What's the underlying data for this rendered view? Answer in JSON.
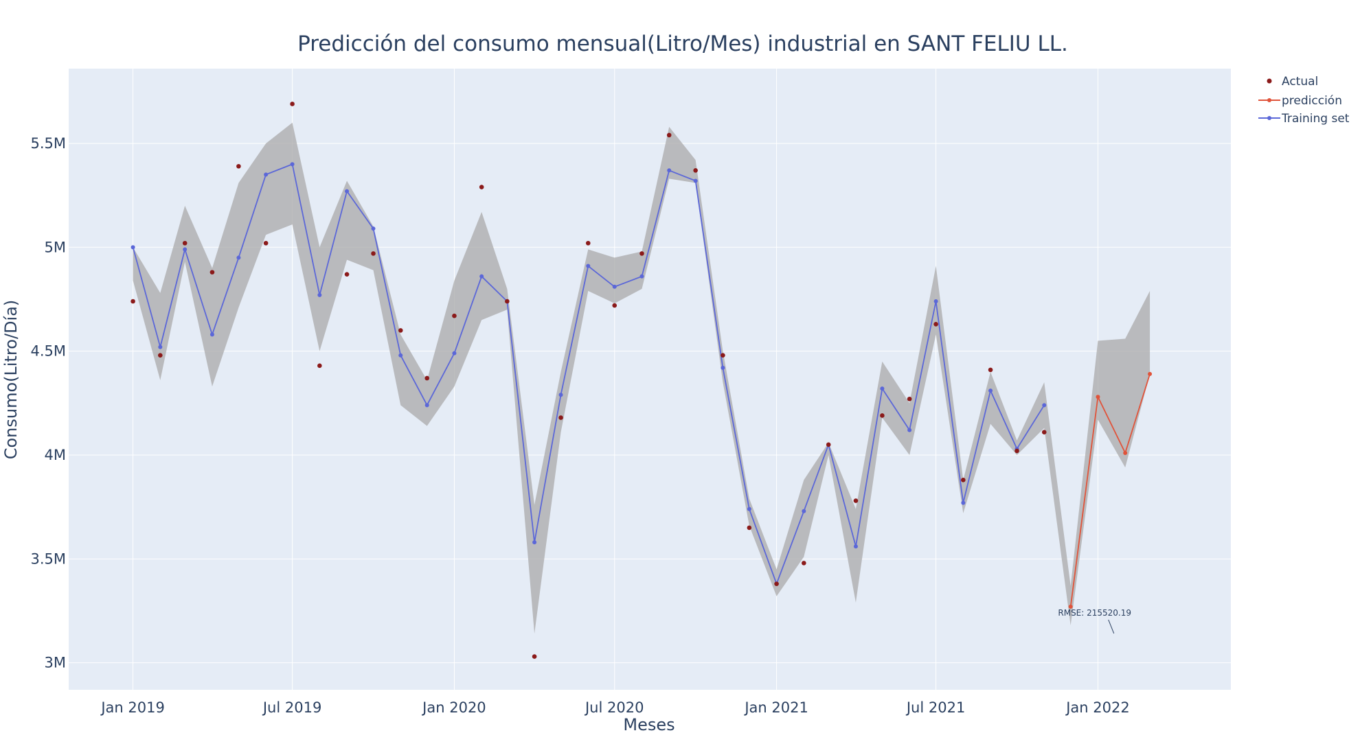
{
  "chart_data": {
    "type": "line",
    "title": "Predicción del consumo mensual(Litro/Mes) industrial en SANT FELIU LL.",
    "xlabel": "Meses",
    "ylabel": "Consumo(Litro/Día)",
    "x_tick_labels": [
      "Jan 2019",
      "Jul 2019",
      "Jan 2020",
      "Jul 2020",
      "Jan 2021",
      "Jul 2021",
      "Jan 2022"
    ],
    "y_ticks": [
      3000000,
      3500000,
      4000000,
      4500000,
      5000000,
      5500000
    ],
    "y_tick_labels": [
      "3M",
      "3.5M",
      "4M",
      "4.5M",
      "5M",
      "5.5M"
    ],
    "ylim": [
      2870000,
      5860000
    ],
    "xlim": [
      "2018-10-20",
      "2022-06-01"
    ],
    "grid": true,
    "legend_position": "top-right",
    "colors": {
      "plot_bg": "#e5ecf6",
      "grid": "#ffffff",
      "band": "#a9a9a9",
      "actual": "#8b1a1a",
      "prediccion": "#e0533a",
      "training": "#5b67d8",
      "text": "#2a3f5f"
    },
    "series": [
      {
        "name": "Actual",
        "mode": "markers",
        "x": [
          "2019-01-01",
          "2019-02-01",
          "2019-03-01",
          "2019-04-01",
          "2019-05-01",
          "2019-06-01",
          "2019-07-01",
          "2019-08-01",
          "2019-09-01",
          "2019-10-01",
          "2019-11-01",
          "2019-12-01",
          "2020-01-01",
          "2020-02-01",
          "2020-03-01",
          "2020-04-01",
          "2020-05-01",
          "2020-06-01",
          "2020-07-01",
          "2020-08-01",
          "2020-09-01",
          "2020-10-01",
          "2020-11-01",
          "2020-12-01",
          "2021-01-01",
          "2021-02-01",
          "2021-03-01",
          "2021-04-01",
          "2021-05-01",
          "2021-06-01",
          "2021-07-01",
          "2021-08-01",
          "2021-09-01",
          "2021-10-01",
          "2021-11-01"
        ],
        "y": [
          4740000,
          4480000,
          5020000,
          4880000,
          5390000,
          5020000,
          5690000,
          4430000,
          4870000,
          4970000,
          4600000,
          4370000,
          4670000,
          5290000,
          4740000,
          3030000,
          4180000,
          5020000,
          4720000,
          4970000,
          5540000,
          5370000,
          4480000,
          3650000,
          3380000,
          3480000,
          4050000,
          3780000,
          4190000,
          4270000,
          4630000,
          3880000,
          4410000,
          4020000,
          4110000
        ]
      },
      {
        "name": "predicción",
        "mode": "lines+markers",
        "x": [
          "2021-12-01",
          "2022-01-01",
          "2022-02-01",
          "2022-03-01"
        ],
        "y": [
          3270000,
          4280000,
          4010000,
          4390000
        ]
      },
      {
        "name": "Training set",
        "mode": "lines+markers",
        "x": [
          "2019-01-01",
          "2019-02-01",
          "2019-03-01",
          "2019-04-01",
          "2019-05-01",
          "2019-06-01",
          "2019-07-01",
          "2019-08-01",
          "2019-09-01",
          "2019-10-01",
          "2019-11-01",
          "2019-12-01",
          "2020-01-01",
          "2020-02-01",
          "2020-03-01",
          "2020-04-01",
          "2020-05-01",
          "2020-06-01",
          "2020-07-01",
          "2020-08-01",
          "2020-09-01",
          "2020-10-01",
          "2020-11-01",
          "2020-12-01",
          "2021-01-01",
          "2021-02-01",
          "2021-03-01",
          "2021-04-01",
          "2021-05-01",
          "2021-06-01",
          "2021-07-01",
          "2021-08-01",
          "2021-09-01",
          "2021-10-01",
          "2021-11-01"
        ],
        "y": [
          5000000,
          4520000,
          4990000,
          4580000,
          4950000,
          5350000,
          5400000,
          4770000,
          5270000,
          5090000,
          4480000,
          4240000,
          4490000,
          4860000,
          4740000,
          3580000,
          4290000,
          4910000,
          4810000,
          4860000,
          5370000,
          5320000,
          4420000,
          3740000,
          3380000,
          3730000,
          4050000,
          3560000,
          4320000,
          4120000,
          4740000,
          3770000,
          4310000,
          4030000,
          4240000
        ]
      }
    ],
    "confidence_band": {
      "x": [
        "2019-01-01",
        "2019-02-01",
        "2019-03-01",
        "2019-04-01",
        "2019-05-01",
        "2019-06-01",
        "2019-07-01",
        "2019-08-01",
        "2019-09-01",
        "2019-10-01",
        "2019-11-01",
        "2019-12-01",
        "2020-01-01",
        "2020-02-01",
        "2020-03-01",
        "2020-04-01",
        "2020-05-01",
        "2020-06-01",
        "2020-07-01",
        "2020-08-01",
        "2020-09-01",
        "2020-10-01",
        "2020-11-01",
        "2020-12-01",
        "2021-01-01",
        "2021-02-01",
        "2021-03-01",
        "2021-04-01",
        "2021-05-01",
        "2021-06-01",
        "2021-07-01",
        "2021-08-01",
        "2021-09-01",
        "2021-10-01",
        "2021-11-01",
        "2021-12-01",
        "2022-01-01",
        "2022-02-01",
        "2022-03-01"
      ],
      "upper": [
        5000000,
        4780000,
        5200000,
        4900000,
        5310000,
        5500000,
        5600000,
        5000000,
        5320000,
        5100000,
        4580000,
        4360000,
        4840000,
        5170000,
        4800000,
        3760000,
        4400000,
        4990000,
        4950000,
        4980000,
        5580000,
        5420000,
        4500000,
        3790000,
        3450000,
        3880000,
        4060000,
        3740000,
        4450000,
        4250000,
        4910000,
        3880000,
        4400000,
        4070000,
        4350000,
        3370000,
        4550000,
        4560000,
        4790000
      ],
      "lower": [
        4840000,
        4360000,
        4930000,
        4330000,
        4710000,
        5060000,
        5110000,
        4500000,
        4940000,
        4890000,
        4240000,
        4140000,
        4330000,
        4650000,
        4700000,
        3140000,
        4110000,
        4790000,
        4730000,
        4800000,
        5330000,
        5310000,
        4350000,
        3660000,
        3320000,
        3510000,
        4000000,
        3290000,
        4180000,
        4000000,
        4580000,
        3720000,
        4150000,
        4000000,
        4130000,
        3180000,
        4170000,
        3940000,
        4390000
      ]
    },
    "annotations": [
      {
        "text": "RMSE: 215520.19",
        "x": "2021-12-01",
        "y": 3270000
      }
    ]
  }
}
